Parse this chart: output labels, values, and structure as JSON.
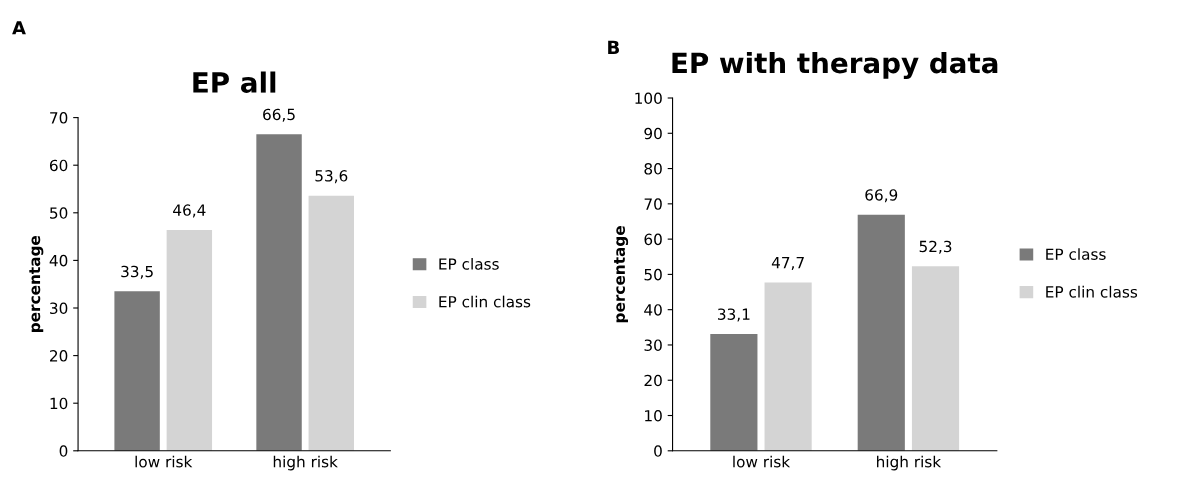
{
  "chart_data": [
    {
      "type": "bar",
      "title": "EP all",
      "ylabel": "percentage",
      "annotations": [
        "A"
      ],
      "categories": [
        "low risk",
        "high risk"
      ],
      "series": [
        {
          "name": "EP class",
          "color": "#7a7a7a",
          "values": [
            33.5,
            66.5
          ],
          "value_labels": [
            "33,5",
            "66,5"
          ]
        },
        {
          "name": "EP clin class",
          "color": "#d4d4d4",
          "values": [
            46.4,
            53.6
          ],
          "value_labels": [
            "46,4",
            "53,6"
          ]
        }
      ],
      "ylim": [
        0,
        70
      ],
      "yticks": [
        0,
        10,
        20,
        30,
        40,
        50,
        60,
        70
      ],
      "grid": false,
      "legend": "right"
    },
    {
      "type": "bar",
      "title": "EP with therapy data",
      "ylabel": "percentage",
      "annotations": [
        "B"
      ],
      "categories": [
        "low risk",
        "high risk"
      ],
      "series": [
        {
          "name": "EP class",
          "color": "#7a7a7a",
          "values": [
            33.1,
            66.9
          ],
          "value_labels": [
            "33,1",
            "66,9"
          ]
        },
        {
          "name": "EP clin class",
          "color": "#d4d4d4",
          "values": [
            47.7,
            52.3
          ],
          "value_labels": [
            "47,7",
            "52,3"
          ]
        }
      ],
      "ylim": [
        0,
        100
      ],
      "yticks": [
        0,
        10,
        20,
        30,
        40,
        50,
        60,
        70,
        80,
        90,
        100
      ],
      "grid": false,
      "legend": "right"
    }
  ]
}
